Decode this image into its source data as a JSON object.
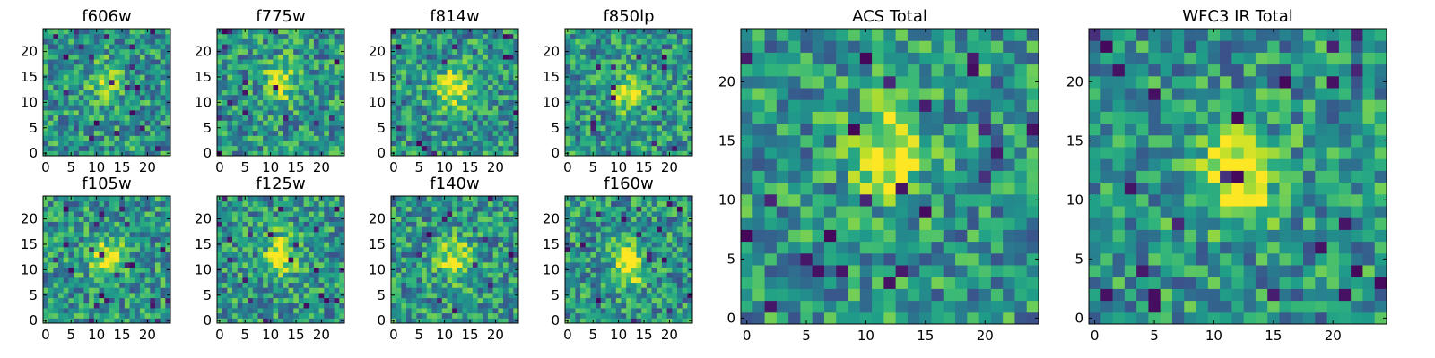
{
  "chart_data": {
    "type": "heatmap",
    "colormap": "viridis",
    "grid": false,
    "panels": [
      {
        "title": "f606w",
        "xlim": [
          0,
          24
        ],
        "ylim": [
          0,
          24
        ],
        "xticks": [
          "0",
          "5",
          "10",
          "15",
          "20"
        ],
        "yticks": [
          "0",
          "5",
          "10",
          "15",
          "20"
        ],
        "center": [
          12,
          14
        ],
        "peak_strength": 0.25
      },
      {
        "title": "f775w",
        "xlim": [
          0,
          24
        ],
        "ylim": [
          0,
          24
        ],
        "xticks": [
          "0",
          "5",
          "10",
          "15",
          "20"
        ],
        "yticks": [
          "0",
          "5",
          "10",
          "15",
          "20"
        ],
        "center": [
          12,
          14
        ],
        "peak_strength": 0.45
      },
      {
        "title": "f814w",
        "xlim": [
          0,
          24
        ],
        "ylim": [
          0,
          24
        ],
        "xticks": [
          "0",
          "5",
          "10",
          "15",
          "20"
        ],
        "yticks": [
          "0",
          "5",
          "10",
          "15",
          "20"
        ],
        "center": [
          12,
          13
        ],
        "peak_strength": 0.5
      },
      {
        "title": "f850lp",
        "xlim": [
          0,
          24
        ],
        "ylim": [
          0,
          24
        ],
        "xticks": [
          "0",
          "5",
          "10",
          "15",
          "20"
        ],
        "yticks": [
          "0",
          "5",
          "10",
          "15",
          "20"
        ],
        "center": [
          12,
          12
        ],
        "peak_strength": 0.4
      },
      {
        "title": "f105w",
        "xlim": [
          0,
          24
        ],
        "ylim": [
          0,
          24
        ],
        "xticks": [
          "0",
          "5",
          "10",
          "15",
          "20"
        ],
        "yticks": [
          "0",
          "5",
          "10",
          "15",
          "20"
        ],
        "center": [
          12,
          12
        ],
        "peak_strength": 0.5
      },
      {
        "title": "f125w",
        "xlim": [
          0,
          24
        ],
        "ylim": [
          0,
          24
        ],
        "xticks": [
          "0",
          "5",
          "10",
          "15",
          "20"
        ],
        "yticks": [
          "0",
          "5",
          "10",
          "15",
          "20"
        ],
        "center": [
          12,
          13
        ],
        "peak_strength": 0.45
      },
      {
        "title": "f140w",
        "xlim": [
          0,
          24
        ],
        "ylim": [
          0,
          24
        ],
        "xticks": [
          "0",
          "5",
          "10",
          "15",
          "20"
        ],
        "yticks": [
          "0",
          "5",
          "10",
          "15",
          "20"
        ],
        "center": [
          12,
          12
        ],
        "peak_strength": 0.45
      },
      {
        "title": "f160w",
        "xlim": [
          0,
          24
        ],
        "ylim": [
          0,
          24
        ],
        "xticks": [
          "0",
          "5",
          "10",
          "15",
          "20"
        ],
        "yticks": [
          "0",
          "5",
          "10",
          "15",
          "20"
        ],
        "center": [
          12,
          11
        ],
        "peak_strength": 0.55
      },
      {
        "title": "ACS Total",
        "xlim": [
          0,
          24
        ],
        "ylim": [
          0,
          24
        ],
        "xticks": [
          "0",
          "5",
          "10",
          "15",
          "20"
        ],
        "yticks": [
          "0",
          "5",
          "10",
          "15",
          "20"
        ],
        "center": [
          12,
          14
        ],
        "peak_strength": 0.5
      },
      {
        "title": "WFC3 IR Total",
        "xlim": [
          0,
          24
        ],
        "ylim": [
          0,
          24
        ],
        "xticks": [
          "0",
          "5",
          "10",
          "15",
          "20"
        ],
        "yticks": [
          "0",
          "5",
          "10",
          "15",
          "20"
        ],
        "center": [
          12,
          12
        ],
        "peak_strength": 0.6
      }
    ]
  }
}
